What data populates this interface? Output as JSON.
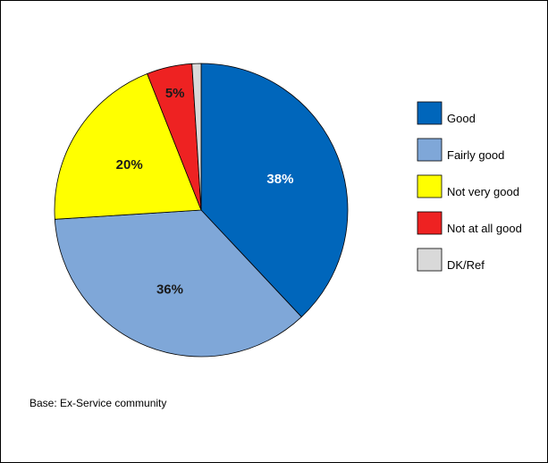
{
  "chart_data": {
    "type": "pie",
    "categories": [
      "Good",
      "Fairly good",
      "Not very good",
      "Not at all good",
      "DK/Ref"
    ],
    "values": [
      38,
      36,
      20,
      5,
      1
    ],
    "data_labels": [
      "38%",
      "36%",
      "20%",
      "5%",
      ""
    ],
    "colors": [
      "#0066bb",
      "#7fa7d8",
      "#ffff00",
      "#ee2222",
      "#d9d9d9"
    ],
    "label_colors": [
      "#ffffff",
      "#1a1a1a",
      "#1a1a1a",
      "#1a1a1a",
      "#1a1a1a"
    ],
    "start_angle": "12 o'clock",
    "direction": "clockwise",
    "legend_position": "right",
    "title": ""
  },
  "footnote": "Base: Ex-Service community"
}
